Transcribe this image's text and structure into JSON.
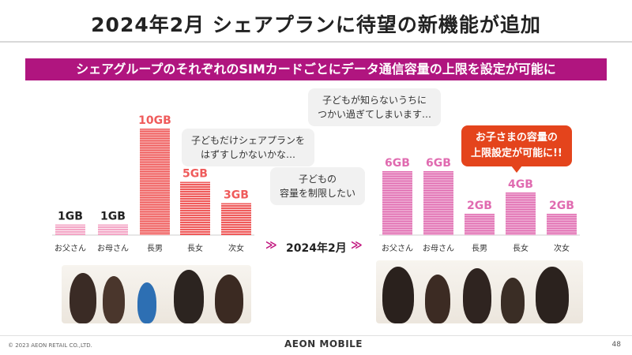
{
  "slide": {
    "title": "2024年2月 シェアプランに待望の新機能が追加",
    "banner": "シェアグループのそれぞれのSIMカードごとにデータ通信容量の上限を設定が可能に",
    "date_label": "2024年2月",
    "arrow_left": "≫",
    "arrow_right": "≫",
    "copyright": "© 2023 AEON RETAIL CO.,LTD.",
    "logo": "AEON MOBILE",
    "page_number": "48"
  },
  "bubbles": {
    "top": "子どもが知らないうちに\nつかい過ぎてしまいます…",
    "middle": "子どもだけシェアプランを\nはずすしかないかな…",
    "lower": "子どもの\n容量を制限したい",
    "highlight": "お子さまの容量の\n上限設定が可能に!!"
  },
  "colors": {
    "brand": "#b0157f",
    "before_bar": "#ef5b5b",
    "before_bar_light": "#f4a6c6",
    "after_bar": "#e06bb0",
    "accent_orange": "#e4441c"
  },
  "chart_data": [
    {
      "type": "bar",
      "categories": [
        "お父さん",
        "お母さん",
        "長男",
        "長女",
        "次女"
      ],
      "values": [
        1,
        1,
        10,
        5,
        3
      ],
      "value_labels": [
        "1GB",
        "1GB",
        "10GB",
        "5GB",
        "3GB"
      ],
      "unit": "GB",
      "title": "",
      "xlabel": "",
      "ylabel": "",
      "grid": false
    },
    {
      "type": "bar",
      "categories": [
        "お父さん",
        "お母さん",
        "長男",
        "長女",
        "次女"
      ],
      "values": [
        6,
        6,
        2,
        4,
        2
      ],
      "value_labels": [
        "6GB",
        "6GB",
        "2GB",
        "4GB",
        "2GB"
      ],
      "unit": "GB",
      "title": "",
      "xlabel": "",
      "ylabel": "",
      "grid": false
    }
  ]
}
